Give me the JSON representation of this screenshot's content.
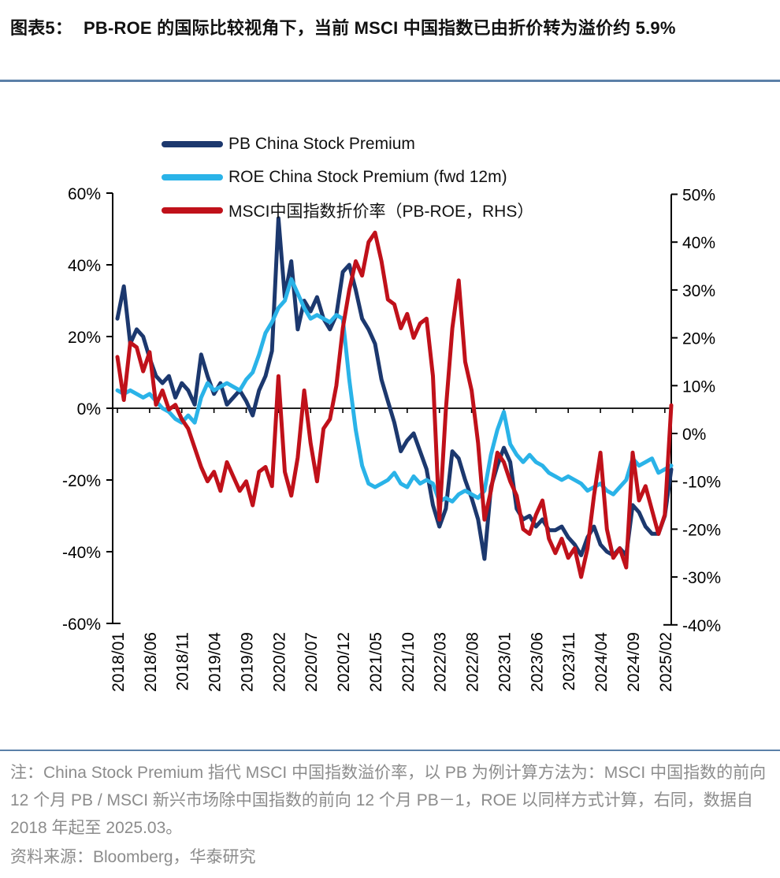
{
  "header": {
    "figure_label": "图表5：",
    "title": "PB-ROE 的国际比较视角下，当前 MSCI 中国指数已由折价转为溢价约 5.9%"
  },
  "chart_data": {
    "type": "line",
    "title": "",
    "x_tick_labels": [
      "2018/01",
      "2018/06",
      "2018/11",
      "2019/04",
      "2019/09",
      "2020/02",
      "2020/07",
      "2020/12",
      "2021/05",
      "2021/10",
      "2022/03",
      "2022/08",
      "2023/01",
      "2023/06",
      "2023/11",
      "2024/04",
      "2024/09",
      "2025/02"
    ],
    "x_months_start": "2018/01",
    "x_months_end": "2025/03",
    "left_axis": {
      "ticks": [
        60,
        40,
        20,
        0,
        -20,
        -40,
        -60
      ],
      "unit": "%",
      "min": -60,
      "max": 60
    },
    "right_axis": {
      "ticks": [
        50,
        40,
        30,
        20,
        10,
        0,
        -10,
        -20,
        -30,
        -40
      ],
      "unit": "%",
      "min": -40,
      "max": 50
    },
    "grid": "zero-line-only",
    "legend_position": "top-left",
    "series": [
      {
        "name": "PB China Stock Premium",
        "axis": "left",
        "color": "#1c386e",
        "values": [
          25,
          34,
          18,
          22,
          20,
          14,
          9,
          7,
          9,
          3,
          7,
          5,
          1,
          15,
          9,
          4,
          7,
          1,
          3,
          5,
          2,
          -2,
          5,
          9,
          16,
          53,
          31,
          41,
          22,
          30,
          27,
          31,
          25,
          22,
          26,
          38,
          40,
          33,
          25,
          22,
          18,
          8,
          2,
          -4,
          -12,
          -9,
          -7,
          -12,
          -17,
          -27,
          -33,
          -28,
          -12,
          -14,
          -20,
          -25,
          -31,
          -42,
          -22,
          -16,
          -11,
          -15,
          -28,
          -31,
          -30,
          -33,
          -31,
          -34,
          -34,
          -33,
          -36,
          -38,
          -41,
          -36,
          -33,
          -38,
          -40,
          -41,
          -39,
          -41,
          -27,
          -29,
          -33,
          -35,
          -35,
          -30,
          -17
        ]
      },
      {
        "name": "ROE China Stock Premium (fwd 12m)",
        "axis": "left",
        "color": "#2ab3e8",
        "values": [
          5,
          4,
          5,
          4,
          3,
          4,
          2,
          0,
          -1,
          -3,
          -4,
          -2,
          -4,
          3,
          7,
          5,
          6,
          7,
          6,
          5,
          8,
          10,
          15,
          21,
          24,
          28,
          30,
          36,
          32,
          28,
          25,
          26,
          25,
          24,
          26,
          25,
          8,
          -6,
          -16,
          -21,
          -22,
          -21,
          -20,
          -18,
          -21,
          -22,
          -19,
          -21,
          -20,
          -21,
          -26,
          -25,
          -26,
          -24,
          -23,
          -24,
          -25,
          -23,
          -13,
          -6,
          -1,
          -10,
          -13,
          -15,
          -13,
          -15,
          -16,
          -18,
          -19,
          -20,
          -19,
          -20,
          -21,
          -23,
          -22,
          -21,
          -23,
          -24,
          -22,
          -20,
          -14,
          -16,
          -15,
          -14,
          -18,
          -17,
          -16
        ]
      },
      {
        "name": "MSCI中国指数折价率（PB-ROE，RHS）",
        "axis": "right",
        "color": "#c0111a",
        "values": [
          16,
          7,
          19,
          18,
          13,
          17,
          6,
          9,
          5,
          6,
          3,
          1,
          -3,
          -7,
          -10,
          -8,
          -12,
          -6,
          -9,
          -12,
          -10,
          -15,
          -8,
          -7,
          -11,
          12,
          -8,
          -13,
          -5,
          9,
          -2,
          -10,
          1,
          3,
          10,
          22,
          30,
          36,
          33,
          40,
          42,
          36,
          28,
          27,
          22,
          25,
          20,
          23,
          24,
          12,
          -18,
          5,
          22,
          32,
          15,
          9,
          -2,
          -18,
          -12,
          -4,
          -6,
          -10,
          -13,
          -20,
          -21,
          -17,
          -14,
          -22,
          -25,
          -22,
          -26,
          -24,
          -30,
          -24,
          -13,
          -4,
          -20,
          -26,
          -24,
          -28,
          -4,
          -14,
          -11,
          -16,
          -21,
          -17,
          5.9
        ]
      }
    ]
  },
  "footer": {
    "note": "注：China Stock Premium 指代 MSCI 中国指数溢价率，以 PB 为例计算方法为：MSCI 中国指数的前向 12 个月 PB / MSCI 新兴市场除中国指数的前向 12 个月 PB－1，ROE 以同样方式计算，右同，数据自 2018 年起至 2025.03。",
    "source": "资料来源：Bloomberg，华泰研究"
  }
}
